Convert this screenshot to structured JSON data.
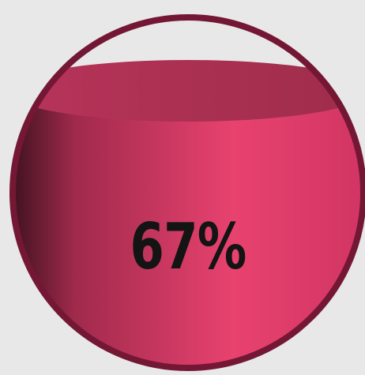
{
  "gauge": {
    "value": 0.67,
    "label": "67%",
    "colors": {
      "background": "#e8e8e8",
      "rim": "#741735",
      "liquid_light": "#e8426f",
      "liquid_dark": "#2e0d17",
      "liquid_surface": "#a8304f",
      "text": "#141414"
    }
  }
}
